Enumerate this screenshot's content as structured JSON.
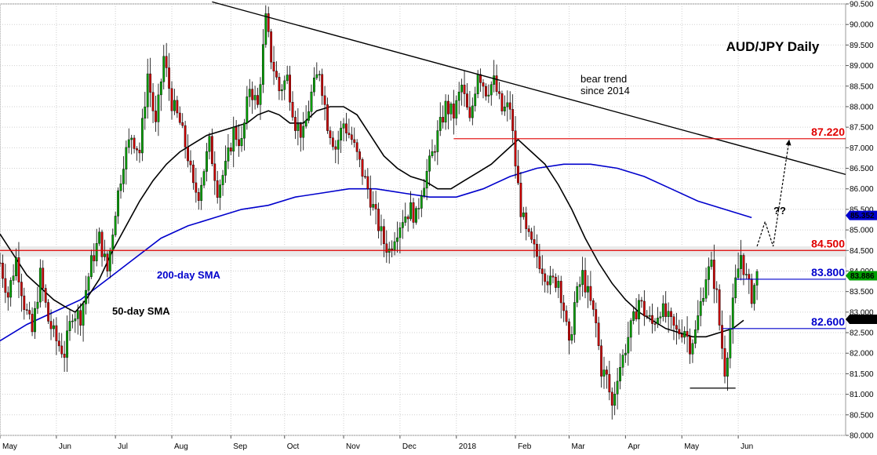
{
  "chart_data": {
    "type": "candlestick",
    "title": "AUD/JPY Daily",
    "y_axis": {
      "ylim": [
        80.0,
        90.5
      ],
      "ticks": [
        "80.000",
        "80.500",
        "81.000",
        "81.500",
        "82.000",
        "82.500",
        "83.000",
        "83.500",
        "84.000",
        "84.500",
        "85.000",
        "85.500",
        "86.000",
        "86.500",
        "87.000",
        "87.500",
        "88.000",
        "88.500",
        "89.000",
        "89.500",
        "90.000",
        "90.500"
      ]
    },
    "x_axis": {
      "ticks": [
        {
          "label": "May",
          "t": 0
        },
        {
          "label": "Jun",
          "t": 21
        },
        {
          "label": "Jul",
          "t": 43
        },
        {
          "label": "Aug",
          "t": 64
        },
        {
          "label": "Sep",
          "t": 86
        },
        {
          "label": "Oct",
          "t": 106
        },
        {
          "label": "Nov",
          "t": 128
        },
        {
          "label": "Dec",
          "t": 149
        },
        {
          "label": "2018",
          "t": 170
        },
        {
          "label": "Feb",
          "t": 192
        },
        {
          "label": "Mar",
          "t": 212
        },
        {
          "label": "Apr",
          "t": 233
        },
        {
          "label": "May",
          "t": 254
        },
        {
          "label": "Jun",
          "t": 275
        }
      ],
      "t_range": [
        0,
        315
      ]
    },
    "price_path": [
      [
        0,
        84.2
      ],
      [
        3,
        83.4
      ],
      [
        6,
        84.3
      ],
      [
        9,
        83.2
      ],
      [
        12,
        82.5
      ],
      [
        15,
        83.9
      ],
      [
        18,
        82.8
      ],
      [
        21,
        82.3
      ],
      [
        24,
        82.0
      ],
      [
        27,
        83.0
      ],
      [
        30,
        82.9
      ],
      [
        34,
        84.2
      ],
      [
        37,
        84.8
      ],
      [
        40,
        84.0
      ],
      [
        43,
        85.5
      ],
      [
        46,
        86.7
      ],
      [
        49,
        87.3
      ],
      [
        52,
        86.9
      ],
      [
        55,
        88.8
      ],
      [
        58,
        87.5
      ],
      [
        61,
        89.2
      ],
      [
        64,
        88.1
      ],
      [
        67,
        87.6
      ],
      [
        70,
        86.8
      ],
      [
        72,
        86.0
      ],
      [
        74,
        85.9
      ],
      [
        78,
        87.1
      ],
      [
        81,
        86.0
      ],
      [
        84,
        86.5
      ],
      [
        87,
        87.4
      ],
      [
        90,
        87.1
      ],
      [
        93,
        88.5
      ],
      [
        96,
        88.0
      ],
      [
        99,
        90.1
      ],
      [
        101,
        89.2
      ],
      [
        104,
        88.4
      ],
      [
        107,
        88.7
      ],
      [
        110,
        87.6
      ],
      [
        113,
        87.3
      ],
      [
        116,
        88.3
      ],
      [
        119,
        88.9
      ],
      [
        122,
        87.6
      ],
      [
        125,
        87.0
      ],
      [
        128,
        87.6
      ],
      [
        131,
        87.2
      ],
      [
        134,
        86.6
      ],
      [
        137,
        86.0
      ],
      [
        140,
        85.3
      ],
      [
        143,
        84.7
      ],
      [
        145,
        84.5
      ],
      [
        147,
        84.9
      ],
      [
        150,
        85.3
      ],
      [
        153,
        85.5
      ],
      [
        155,
        85.3
      ],
      [
        157,
        86.0
      ],
      [
        160,
        86.6
      ],
      [
        163,
        87.3
      ],
      [
        166,
        88.0
      ],
      [
        169,
        87.8
      ],
      [
        172,
        88.5
      ],
      [
        175,
        87.6
      ],
      [
        178,
        88.9
      ],
      [
        181,
        88.4
      ],
      [
        184,
        88.6
      ],
      [
        187,
        87.9
      ],
      [
        190,
        88.0
      ],
      [
        192,
        86.6
      ],
      [
        194,
        85.5
      ],
      [
        196,
        84.9
      ],
      [
        199,
        84.5
      ],
      [
        202,
        84.1
      ],
      [
        205,
        83.7
      ],
      [
        208,
        83.8
      ],
      [
        210,
        83.1
      ],
      [
        212,
        82.1
      ],
      [
        214,
        83.2
      ],
      [
        217,
        83.9
      ],
      [
        220,
        83.2
      ],
      [
        222,
        82.7
      ],
      [
        224,
        81.6
      ],
      [
        226,
        81.4
      ],
      [
        228,
        80.7
      ],
      [
        230,
        81.5
      ],
      [
        232,
        81.9
      ],
      [
        234,
        82.4
      ],
      [
        236,
        82.8
      ],
      [
        238,
        83.3
      ],
      [
        240,
        83.0
      ],
      [
        243,
        82.7
      ],
      [
        246,
        83.1
      ],
      [
        249,
        82.8
      ],
      [
        252,
        82.5
      ],
      [
        255,
        82.6
      ],
      [
        257,
        82.2
      ],
      [
        259,
        82.5
      ],
      [
        261,
        83.2
      ],
      [
        263,
        83.9
      ],
      [
        265,
        84.1
      ],
      [
        267,
        83.4
      ],
      [
        268,
        82.7
      ],
      [
        270,
        81.6
      ],
      [
        272,
        82.6
      ],
      [
        274,
        83.7
      ],
      [
        276,
        84.4
      ],
      [
        278,
        83.8
      ],
      [
        280,
        83.4
      ],
      [
        282,
        83.9
      ]
    ],
    "sma_50": [
      [
        0,
        84.9
      ],
      [
        5,
        84.4
      ],
      [
        10,
        83.9
      ],
      [
        15,
        83.6
      ],
      [
        20,
        83.3
      ],
      [
        25,
        83.1
      ],
      [
        28,
        83.0
      ],
      [
        32,
        83.3
      ],
      [
        37,
        83.8
      ],
      [
        42,
        84.5
      ],
      [
        47,
        85.1
      ],
      [
        52,
        85.7
      ],
      [
        57,
        86.2
      ],
      [
        62,
        86.6
      ],
      [
        67,
        86.9
      ],
      [
        72,
        87.1
      ],
      [
        77,
        87.3
      ],
      [
        82,
        87.4
      ],
      [
        87,
        87.5
      ],
      [
        92,
        87.6
      ],
      [
        96,
        87.8
      ],
      [
        100,
        87.9
      ],
      [
        104,
        87.8
      ],
      [
        108,
        87.6
      ],
      [
        113,
        87.6
      ],
      [
        118,
        87.9
      ],
      [
        123,
        88.0
      ],
      [
        128,
        88.0
      ],
      [
        133,
        87.8
      ],
      [
        138,
        87.3
      ],
      [
        143,
        86.8
      ],
      [
        148,
        86.5
      ],
      [
        153,
        86.3
      ],
      [
        158,
        86.2
      ],
      [
        163,
        86.0
      ],
      [
        168,
        86.0
      ],
      [
        173,
        86.2
      ],
      [
        178,
        86.4
      ],
      [
        183,
        86.6
      ],
      [
        188,
        86.9
      ],
      [
        193,
        87.2
      ],
      [
        198,
        86.9
      ],
      [
        203,
        86.6
      ],
      [
        208,
        86.1
      ],
      [
        213,
        85.5
      ],
      [
        218,
        84.8
      ],
      [
        223,
        84.2
      ],
      [
        228,
        83.7
      ],
      [
        233,
        83.3
      ],
      [
        238,
        83.0
      ],
      [
        243,
        82.8
      ],
      [
        248,
        82.6
      ],
      [
        253,
        82.5
      ],
      [
        258,
        82.4
      ],
      [
        263,
        82.4
      ],
      [
        268,
        82.5
      ],
      [
        273,
        82.6
      ],
      [
        277,
        82.8
      ]
    ],
    "sma_200": [
      [
        0,
        82.3
      ],
      [
        10,
        82.7
      ],
      [
        20,
        83.0
      ],
      [
        30,
        83.3
      ],
      [
        40,
        83.8
      ],
      [
        50,
        84.3
      ],
      [
        60,
        84.8
      ],
      [
        70,
        85.1
      ],
      [
        80,
        85.3
      ],
      [
        90,
        85.5
      ],
      [
        100,
        85.6
      ],
      [
        110,
        85.8
      ],
      [
        120,
        85.9
      ],
      [
        130,
        86.0
      ],
      [
        140,
        86.0
      ],
      [
        150,
        85.9
      ],
      [
        160,
        85.8
      ],
      [
        170,
        85.8
      ],
      [
        180,
        86.0
      ],
      [
        190,
        86.3
      ],
      [
        200,
        86.5
      ],
      [
        210,
        86.6
      ],
      [
        220,
        86.6
      ],
      [
        230,
        86.5
      ],
      [
        240,
        86.3
      ],
      [
        250,
        86.0
      ],
      [
        260,
        85.7
      ],
      [
        270,
        85.5
      ],
      [
        280,
        85.3
      ]
    ],
    "trendline": {
      "start": [
        79,
        90.55
      ],
      "end": [
        315,
        86.35
      ]
    },
    "levels": [
      {
        "value": 87.22,
        "label": "87.220",
        "color": "#e00000",
        "t_start": 169
      },
      {
        "value": 84.5,
        "label": "84.500",
        "color": "#e00000",
        "t_start": 0
      },
      {
        "value": 83.8,
        "label": "83.800",
        "color": "#0000cc",
        "t_start": 274
      },
      {
        "value": 82.6,
        "label": "82.600",
        "color": "#0000cc",
        "t_start": 269
      }
    ],
    "support_zone": {
      "from": 84.35,
      "to": 84.6
    },
    "low_line": {
      "value": 81.15,
      "t_start": 257,
      "t_end": 274
    },
    "projection": [
      [
        282,
        84.6
      ],
      [
        285,
        85.2
      ],
      [
        288,
        84.6
      ],
      [
        294,
        87.2
      ]
    ],
    "price_tags": [
      {
        "value": 85.352,
        "label": "85.352",
        "color": "#0000cc"
      },
      {
        "value": 83.886,
        "label": "83.886",
        "color": "#00a000"
      },
      {
        "value": 82.825,
        "label": "82.825",
        "color": "#000000"
      }
    ],
    "annotations": {
      "bear_trend_line1": "bear trend",
      "bear_trend_line2": "since 2014",
      "sma200_label": "200-day SMA",
      "sma50_label": "50-day SMA",
      "question": "??"
    },
    "colors": {
      "up": "#00a000",
      "down": "#cc0000",
      "sma50": "#000000",
      "sma200": "#0000cc",
      "grid": "#d0d0d0"
    },
    "grid": true
  }
}
